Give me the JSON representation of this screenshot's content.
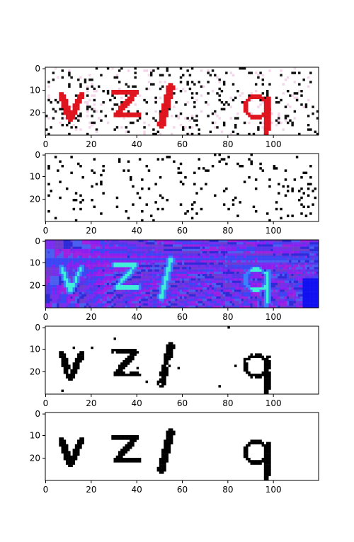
{
  "figure": {
    "background": "#ffffff",
    "panel_count": 5
  },
  "chart_data": [
    {
      "type": "heatmap",
      "panel": "original-captcha",
      "xlim": [
        0,
        120
      ],
      "ylim": [
        30,
        0
      ],
      "x_ticks": [
        0,
        20,
        40,
        60,
        80,
        100
      ],
      "y_ticks": [
        0,
        10,
        20
      ],
      "background": "#ffffff",
      "glyph_color": "#e0141e",
      "noise_color": "#111111",
      "noise_density": 0.09,
      "glyphs": [
        {
          "char": "v",
          "x_range": [
            6,
            17
          ],
          "y_range": [
            11,
            24
          ]
        },
        {
          "char": "z",
          "x_range": [
            30,
            41
          ],
          "y_range": [
            9,
            23
          ]
        },
        {
          "char": "l",
          "x_range": [
            50,
            56
          ],
          "y_range": [
            8,
            26
          ]
        },
        {
          "char": "q",
          "x_range": [
            86,
            100
          ],
          "y_range": [
            12,
            30
          ]
        }
      ]
    },
    {
      "type": "heatmap",
      "panel": "noise-mask",
      "xlim": [
        0,
        120
      ],
      "ylim": [
        30,
        0
      ],
      "x_ticks": [
        0,
        20,
        40,
        60,
        80,
        100
      ],
      "y_ticks": [
        0,
        10,
        20
      ],
      "background": "#ffffff",
      "noise_color": "#000000",
      "noise_density": 0.05
    },
    {
      "type": "heatmap",
      "panel": "hsv-rendering",
      "xlim": [
        0,
        120
      ],
      "ylim": [
        30,
        0
      ],
      "x_ticks": [
        0,
        20,
        40,
        60,
        80,
        100
      ],
      "y_ticks": [
        0,
        10,
        20
      ],
      "palette": [
        "#7a2cf0",
        "#5a34e8",
        "#3b46f5",
        "#8a1ff2",
        "#a020e0",
        "#4b5ef0",
        "#2f2ad8",
        "#6f3ad0"
      ],
      "glyph_color": "#40f0d8",
      "glyph_edge": "#3a80ff",
      "block_color": "#1010f0",
      "glyphs": [
        {
          "char": "v",
          "x_range": [
            6,
            17
          ],
          "y_range": [
            11,
            24
          ]
        },
        {
          "char": "z",
          "x_range": [
            30,
            41
          ],
          "y_range": [
            9,
            23
          ]
        },
        {
          "char": "l",
          "x_range": [
            50,
            56
          ],
          "y_range": [
            8,
            26
          ]
        },
        {
          "char": "q",
          "x_range": [
            86,
            100
          ],
          "y_range": [
            12,
            30
          ]
        }
      ]
    },
    {
      "type": "heatmap",
      "panel": "binarized-rough",
      "xlim": [
        0,
        120
      ],
      "ylim": [
        30,
        0
      ],
      "x_ticks": [
        0,
        20,
        40,
        60,
        80,
        100
      ],
      "y_ticks": [
        0,
        10,
        20
      ],
      "background": "#ffffff",
      "glyph_color": "#000000",
      "rough": true,
      "glyphs": [
        {
          "char": "v",
          "x_range": [
            6,
            17
          ],
          "y_range": [
            11,
            24
          ]
        },
        {
          "char": "z",
          "x_range": [
            30,
            41
          ],
          "y_range": [
            9,
            23
          ]
        },
        {
          "char": "l",
          "x_range": [
            50,
            56
          ],
          "y_range": [
            8,
            26
          ]
        },
        {
          "char": "q",
          "x_range": [
            86,
            100
          ],
          "y_range": [
            12,
            30
          ]
        }
      ]
    },
    {
      "type": "heatmap",
      "panel": "binarized-clean",
      "xlim": [
        0,
        120
      ],
      "ylim": [
        30,
        0
      ],
      "x_ticks": [
        0,
        20,
        40,
        60,
        80,
        100
      ],
      "y_ticks": [
        0,
        10,
        20
      ],
      "background": "#ffffff",
      "glyph_color": "#000000",
      "rough": false,
      "glyphs": [
        {
          "char": "v",
          "x_range": [
            6,
            17
          ],
          "y_range": [
            11,
            24
          ]
        },
        {
          "char": "z",
          "x_range": [
            30,
            41
          ],
          "y_range": [
            9,
            23
          ]
        },
        {
          "char": "l",
          "x_range": [
            50,
            56
          ],
          "y_range": [
            8,
            26
          ]
        },
        {
          "char": "q",
          "x_range": [
            86,
            100
          ],
          "y_range": [
            12,
            30
          ]
        }
      ]
    }
  ]
}
